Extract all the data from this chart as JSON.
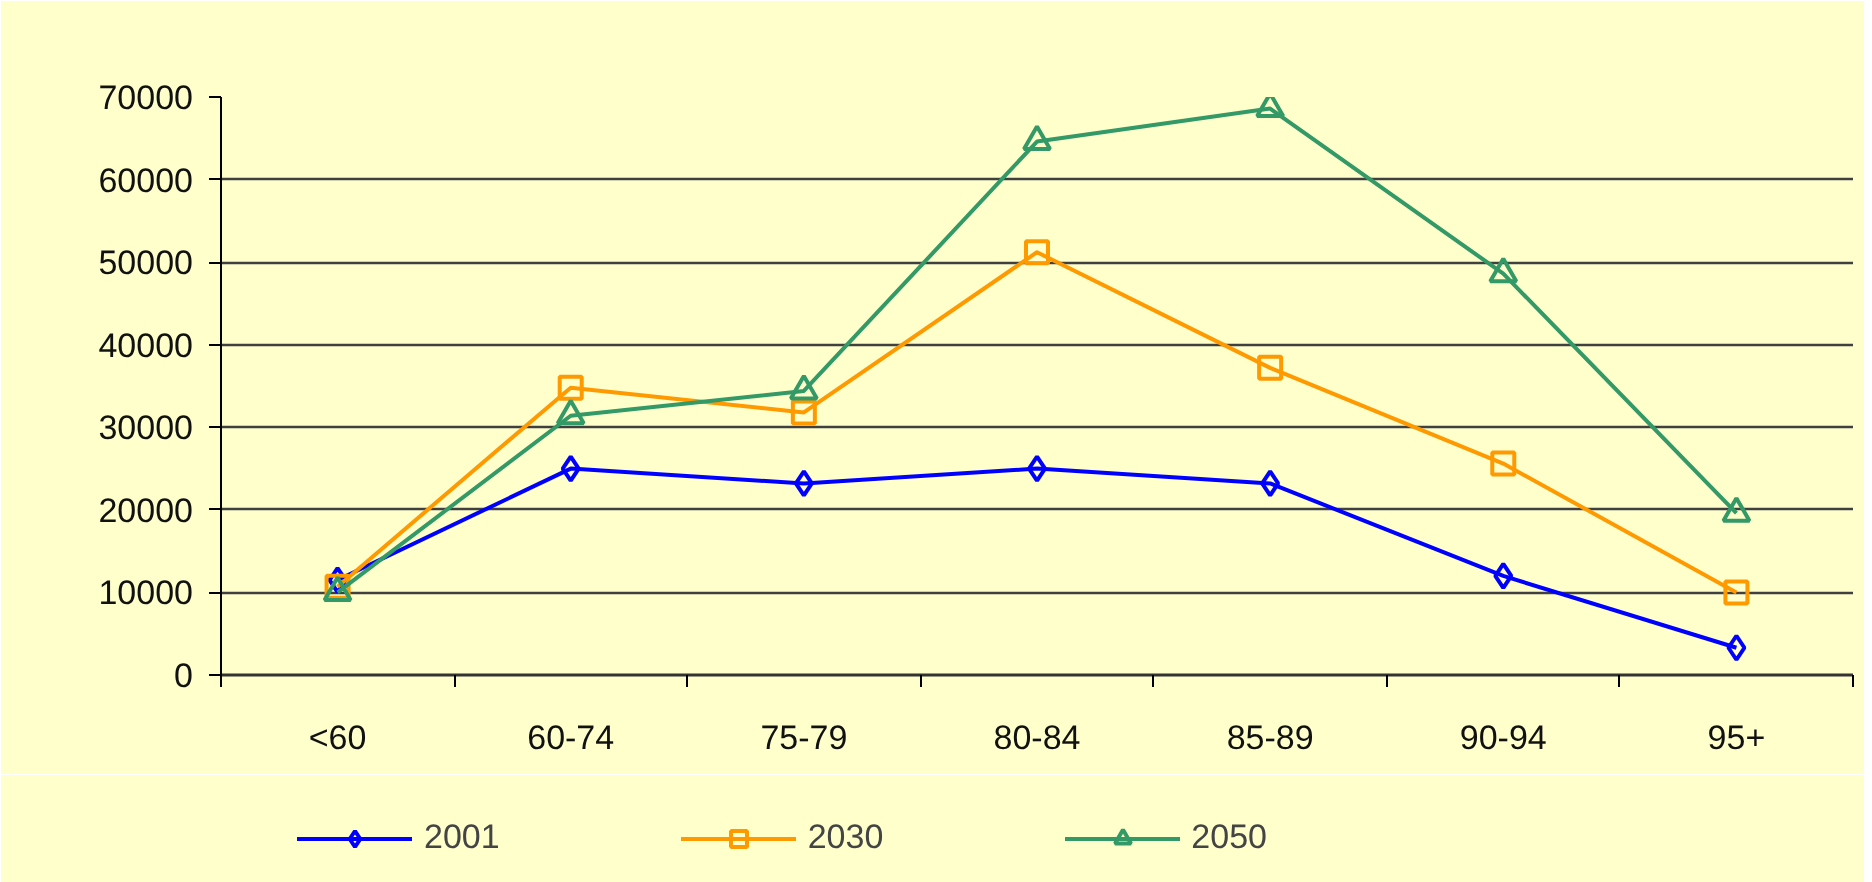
{
  "chart_data": {
    "type": "line",
    "categories": [
      "<60",
      "60-74",
      "75-79",
      "80-84",
      "85-89",
      "90-94",
      "95+"
    ],
    "series": [
      {
        "name": "2001",
        "color": "#0000ff",
        "marker": "diamond",
        "values": [
          11500,
          25000,
          23200,
          25000,
          23200,
          12000,
          3300
        ]
      },
      {
        "name": "2030",
        "color": "#ff9900",
        "marker": "square",
        "values": [
          10700,
          34800,
          31800,
          51200,
          37200,
          25600,
          10000
        ]
      },
      {
        "name": "2050",
        "color": "#339966",
        "marker": "triangle",
        "values": [
          10000,
          31400,
          34400,
          64600,
          68600,
          48600,
          19600
        ]
      }
    ],
    "ylim": [
      0,
      70000
    ],
    "yticks": [
      0,
      10000,
      20000,
      30000,
      40000,
      50000,
      60000,
      70000
    ],
    "grid": "y",
    "legend": "bottom"
  }
}
